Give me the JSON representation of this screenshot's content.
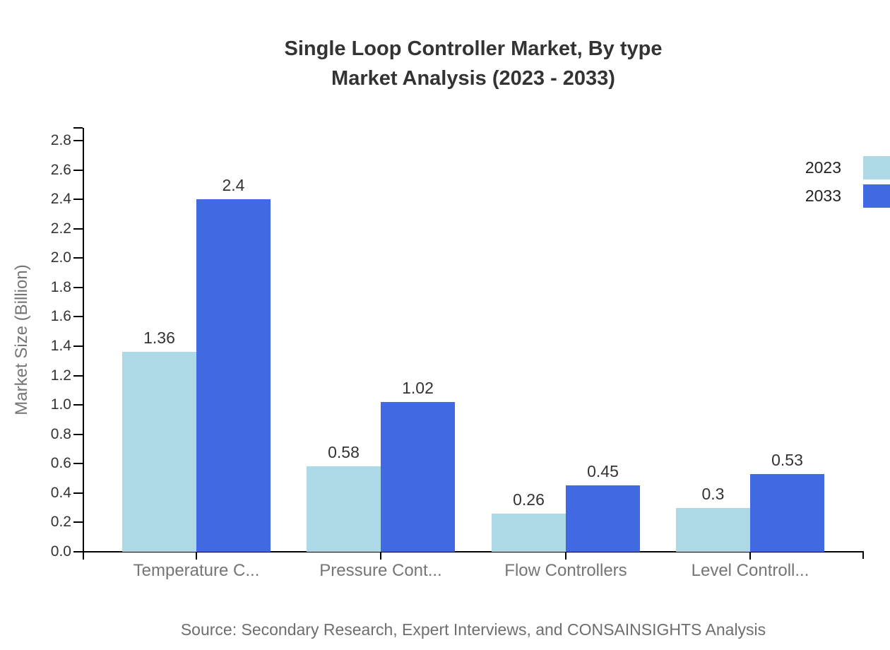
{
  "title": {
    "line1": "Single Loop Controller Market, By type",
    "line2": "Market Analysis (2023 - 2033)"
  },
  "source": "Source: Secondary Research, Expert Interviews, and CONSAINSIGHTS Analysis",
  "legend": {
    "position": "right",
    "items": [
      {
        "label": "2023",
        "color": "#ADD8E6"
      },
      {
        "label": "2033",
        "color": "#4169E1"
      }
    ]
  },
  "colors": {
    "series_2023": "#ADD8E6",
    "series_2033": "#4169E1",
    "axis": "#000000",
    "title_text": "#333333",
    "tick_text": "#333333",
    "category_text": "#757575",
    "source_text": "#6e6e6e"
  },
  "chart_data": {
    "type": "bar",
    "title": "Single Loop Controller Market, By type Market Analysis (2023 - 2033)",
    "categories": [
      "Temperature C...",
      "Pressure Cont...",
      "Flow Controllers",
      "Level Controll..."
    ],
    "series": [
      {
        "name": "2023",
        "color": "#ADD8E6",
        "values": [
          1.36,
          0.58,
          0.26,
          0.3
        ]
      },
      {
        "name": "2033",
        "color": "#4169E1",
        "values": [
          2.4,
          1.02,
          0.45,
          0.53
        ]
      }
    ],
    "value_labels": [
      [
        "1.36",
        "0.58",
        "0.26",
        "0.3"
      ],
      [
        "2.4",
        "1.02",
        "0.45",
        "0.53"
      ]
    ],
    "xlabel": "",
    "ylabel": "Market Size (Billion)",
    "ylim": [
      0,
      2.8
    ],
    "ytick_step": 0.2,
    "yticks": [
      "0.0",
      "0.2",
      "0.4",
      "0.6",
      "0.8",
      "1.0",
      "1.2",
      "1.4",
      "1.6",
      "1.8",
      "2.0",
      "2.2",
      "2.4",
      "2.6",
      "2.8"
    ],
    "grid": false,
    "legend_position": "right"
  }
}
